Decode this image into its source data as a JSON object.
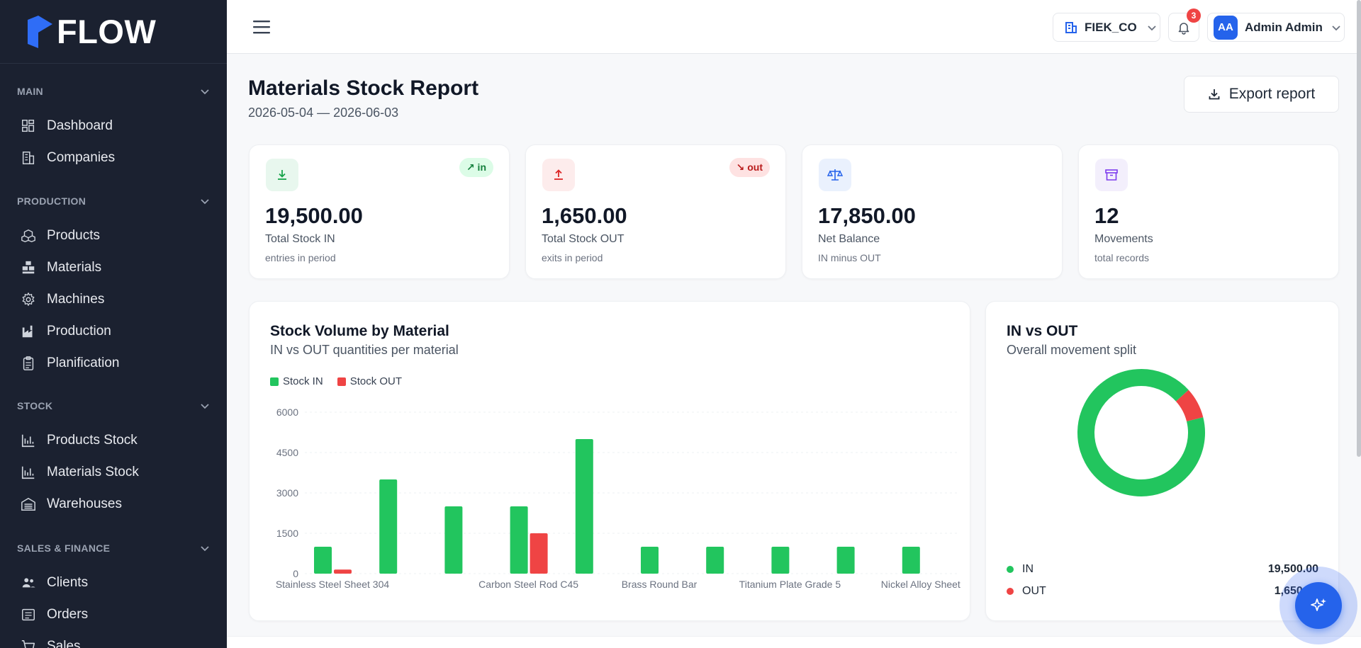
{
  "brand": {
    "name": "FLOW"
  },
  "sidebar": {
    "sections": [
      {
        "label": "MAIN",
        "items": [
          {
            "label": "Dashboard",
            "icon": "dashboard-icon"
          },
          {
            "label": "Companies",
            "icon": "building-icon"
          }
        ]
      },
      {
        "label": "PRODUCTION",
        "items": [
          {
            "label": "Products",
            "icon": "boxes-icon"
          },
          {
            "label": "Materials",
            "icon": "materials-icon"
          },
          {
            "label": "Machines",
            "icon": "gear-icon"
          },
          {
            "label": "Production",
            "icon": "factory-icon"
          },
          {
            "label": "Planification",
            "icon": "clipboard-icon"
          }
        ]
      },
      {
        "label": "STOCK",
        "items": [
          {
            "label": "Products Stock",
            "icon": "bar-chart-icon"
          },
          {
            "label": "Materials Stock",
            "icon": "bar-chart-icon"
          },
          {
            "label": "Warehouses",
            "icon": "warehouse-icon"
          }
        ]
      },
      {
        "label": "SALES & FINANCE",
        "items": [
          {
            "label": "Clients",
            "icon": "users-icon"
          },
          {
            "label": "Orders",
            "icon": "list-icon"
          },
          {
            "label": "Sales",
            "icon": "cart-icon"
          }
        ]
      }
    ]
  },
  "topbar": {
    "company": "FIEK_CO",
    "notifications_count": "3",
    "user_initials": "AA",
    "user_name": "Admin Admin"
  },
  "page": {
    "title": "Materials Stock Report",
    "date_range": "2026-05-04 — 2026-06-03",
    "export_label": "Export report"
  },
  "stats": [
    {
      "value": "19,500.00",
      "label": "Total Stock IN",
      "sub": "entries in period",
      "badge": "↗ in",
      "icon": "download-icon",
      "color": "#16a34a"
    },
    {
      "value": "1,650.00",
      "label": "Total Stock OUT",
      "sub": "exits in period",
      "badge": "↘ out",
      "icon": "upload-icon",
      "color": "#dc2626"
    },
    {
      "value": "17,850.00",
      "label": "Net Balance",
      "sub": "IN minus OUT",
      "badge": "",
      "icon": "scale-icon",
      "color": "#2563eb"
    },
    {
      "value": "12",
      "label": "Movements",
      "sub": "total records",
      "badge": "",
      "icon": "archive-icon",
      "color": "#7c3aed"
    }
  ],
  "bar_panel": {
    "title": "Stock Volume by Material",
    "subtitle": "IN vs OUT quantities per material",
    "legend_in": "Stock IN",
    "legend_out": "Stock OUT"
  },
  "donut_panel": {
    "title": "IN vs OUT",
    "subtitle": "Overall movement split",
    "in_label": "IN",
    "in_value": "19,500.00",
    "out_label": "OUT",
    "out_value": "1,650.00"
  },
  "colors": {
    "in": "#22c55e",
    "out": "#ef4444",
    "sidebar": "#1b2130",
    "accent": "#2563eb"
  },
  "chart_data": [
    {
      "type": "bar",
      "title": "Stock Volume by Material",
      "categories": [
        "Stainless Steel Sheet 304",
        "",
        "",
        "Carbon Steel Rod C45",
        "",
        "Brass Round Bar",
        "",
        "Titanium Plate Grade 5",
        "",
        "Nickel Alloy Sheet"
      ],
      "series": [
        {
          "name": "Stock IN",
          "color": "#22c55e",
          "values": [
            1000,
            3500,
            2500,
            2500,
            5000,
            1000,
            1000,
            1000,
            1000,
            1000
          ]
        },
        {
          "name": "Stock OUT",
          "color": "#ef4444",
          "values": [
            150,
            0,
            0,
            1500,
            0,
            0,
            0,
            0,
            0,
            0
          ]
        }
      ],
      "yticks": [
        "0",
        "1500",
        "3000",
        "4500",
        "6000"
      ],
      "ylim": [
        0,
        6000
      ],
      "grid": true,
      "legend": "top-left"
    },
    {
      "type": "pie",
      "title": "IN vs OUT",
      "labels": [
        "IN",
        "OUT"
      ],
      "values": [
        19500,
        1650
      ],
      "colors": [
        "#22c55e",
        "#ef4444"
      ]
    }
  ]
}
